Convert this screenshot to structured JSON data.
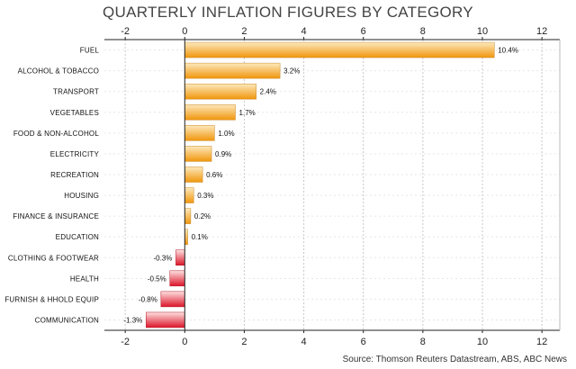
{
  "chart_data": {
    "type": "bar",
    "orientation": "horizontal",
    "title": "QUARTERLY INFLATION FIGURES BY CATEGORY",
    "source": "Source: Thomson Reuters Datastream, ABS, ABC News",
    "categories": [
      "FUEL",
      "ALCOHOL & TOBACCO",
      "TRANSPORT",
      "VEGETABLES",
      "FOOD & NON-ALCOHOL",
      "ELECTRICITY",
      "RECREATION",
      "HOUSING",
      "FINANCE & INSURANCE",
      "EDUCATION",
      "CLOTHING & FOOTWEAR",
      "HEALTH",
      "FURNISH & HHOLD EQUIP",
      "COMMUNICATION"
    ],
    "values": [
      10.4,
      3.2,
      2.4,
      1.7,
      1.0,
      0.9,
      0.6,
      0.3,
      0.2,
      0.1,
      -0.3,
      -0.5,
      -0.8,
      -1.3
    ],
    "value_labels": [
      "10.4%",
      "3.2%",
      "2.4%",
      "1.7%",
      "1.0%",
      "0.9%",
      "0.6%",
      "0.3%",
      "0.2%",
      "0.1%",
      "-0.3%",
      "-0.5%",
      "-0.8%",
      "-1.3%"
    ],
    "x_ticks": [
      -2,
      0,
      2,
      4,
      6,
      8,
      10,
      12
    ],
    "xlim": [
      -2.7,
      12.6
    ],
    "axis_position": "top-and-bottom",
    "grid": true,
    "colors": {
      "positive_light": "#fde9bd",
      "positive_dark": "#f0960c",
      "negative_light": "#fde0e0",
      "negative_dark": "#dc1428",
      "grid": "#c8c8c8",
      "axis": "#222222"
    }
  }
}
